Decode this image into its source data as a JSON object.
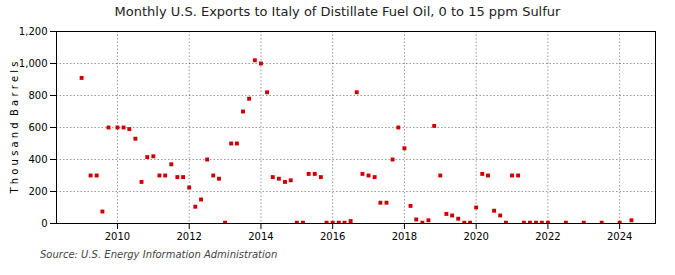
{
  "chart_data": {
    "type": "scatter",
    "title": "Monthly U.S. Exports to Italy of Distillate Fuel Oil, 0 to 15 ppm Sulfur",
    "ylabel": "T h o u s a n d  B a r r e l s",
    "source": "Source: U.S. Energy Information Administration",
    "color": "#cc0000",
    "marker": "square",
    "grid": true,
    "ylim": [
      0,
      1200
    ],
    "yticks": [
      0,
      200,
      400,
      600,
      800,
      {
        "value": 1000,
        "label": "1,000"
      },
      {
        "value": 1200,
        "label": "1,200"
      }
    ],
    "xlim": [
      2008.3,
      2025.0
    ],
    "xticks": [
      2010,
      2012,
      2014,
      2016,
      2018,
      2020,
      2022,
      2024
    ],
    "x": [
      2009.0,
      2009.25,
      2009.42,
      2009.58,
      2009.75,
      2010.0,
      2010.17,
      2010.33,
      2010.5,
      2010.67,
      2010.83,
      2011.0,
      2011.17,
      2011.33,
      2011.5,
      2011.67,
      2011.83,
      2012.0,
      2012.17,
      2012.33,
      2012.5,
      2012.67,
      2012.83,
      2013.0,
      2013.17,
      2013.33,
      2013.5,
      2013.67,
      2013.83,
      2014.0,
      2014.17,
      2014.33,
      2014.5,
      2014.67,
      2014.83,
      2015.0,
      2015.17,
      2015.33,
      2015.5,
      2015.67,
      2015.83,
      2016.0,
      2016.17,
      2016.33,
      2016.5,
      2016.67,
      2016.83,
      2017.0,
      2017.17,
      2017.33,
      2017.5,
      2017.67,
      2017.83,
      2018.0,
      2018.17,
      2018.33,
      2018.5,
      2018.67,
      2018.83,
      2019.0,
      2019.17,
      2019.33,
      2019.5,
      2019.67,
      2019.83,
      2020.0,
      2020.17,
      2020.33,
      2020.5,
      2020.67,
      2020.83,
      2021.0,
      2021.17,
      2021.33,
      2021.5,
      2021.67,
      2021.83,
      2022.0,
      2022.5,
      2023.0,
      2023.5,
      2024.0,
      2024.33
    ],
    "values": [
      910,
      300,
      300,
      75,
      600,
      600,
      600,
      590,
      530,
      260,
      415,
      420,
      300,
      300,
      370,
      290,
      290,
      225,
      105,
      150,
      400,
      300,
      280,
      5,
      500,
      500,
      700,
      780,
      1020,
      1000,
      820,
      290,
      280,
      260,
      270,
      5,
      5,
      310,
      310,
      290,
      5,
      5,
      5,
      5,
      15,
      820,
      310,
      300,
      290,
      130,
      130,
      400,
      600,
      470,
      110,
      25,
      5,
      20,
      610,
      300,
      60,
      50,
      30,
      5,
      5,
      100,
      310,
      300,
      80,
      50,
      5,
      300,
      300,
      5,
      5,
      5,
      5,
      5,
      5,
      5,
      5,
      5,
      20
    ]
  }
}
